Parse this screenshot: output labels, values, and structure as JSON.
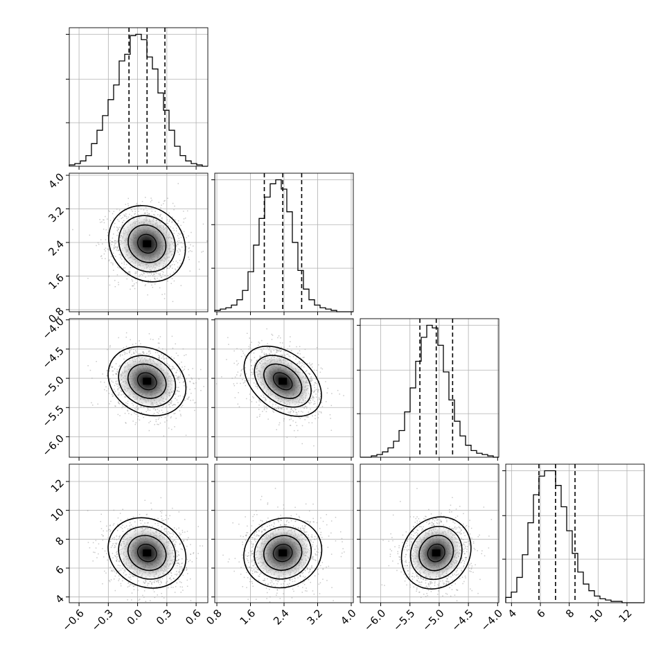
{
  "chart_data": {
    "type": "corner",
    "title": "",
    "parameters": [
      {
        "range": [
          -0.7,
          0.72
        ],
        "ticks": [
          -0.6,
          -0.3,
          0.0,
          0.3,
          0.6
        ],
        "tick_labels": [
          "−0.6",
          "−0.3",
          "0.0",
          "0.3",
          "0.6"
        ],
        "quantiles": [
          -0.088,
          0.097,
          0.28
        ],
        "mean": 0.097,
        "sd": 0.19
      },
      {
        "range": [
          0.75,
          4.05
        ],
        "ticks": [
          0.8,
          1.6,
          2.4,
          3.2,
          4.0
        ],
        "tick_labels": [
          "0.8",
          "1.6",
          "2.4",
          "3.2",
          "4.0"
        ],
        "quantiles": [
          1.93,
          2.37,
          2.82
        ],
        "mean": 2.37,
        "sd": 0.44
      },
      {
        "range": [
          -6.35,
          -3.98
        ],
        "ticks": [
          -6.0,
          -5.5,
          -5.0,
          -4.5,
          -4.0
        ],
        "tick_labels": [
          "−6.0",
          "−5.5",
          "−5.0",
          "−4.5",
          "−4.0"
        ],
        "quantiles": [
          -5.33,
          -5.05,
          -4.77
        ],
        "mean": -5.05,
        "sd": 0.29
      },
      {
        "range": [
          3.6,
          13.2
        ],
        "ticks": [
          4,
          6,
          8,
          10,
          12
        ],
        "tick_labels": [
          "4",
          "6",
          "8",
          "10",
          "12"
        ],
        "quantiles": [
          5.9,
          7.05,
          8.4
        ],
        "mean": 7.05,
        "sd": 1.2
      }
    ],
    "histograms": [
      {
        "bins": [
          -0.7,
          0.72
        ],
        "counts": [
          1,
          2,
          4,
          8,
          17,
          27,
          38,
          50,
          61,
          79,
          84,
          98,
          99,
          95,
          82,
          73,
          55,
          42,
          27,
          15,
          8,
          4,
          2,
          1,
          0
        ]
      },
      {
        "bins": [
          0.75,
          4.05
        ],
        "counts": [
          1,
          2,
          3,
          5,
          9,
          16,
          30,
          50,
          70,
          86,
          96,
          99,
          92,
          75,
          52,
          31,
          17,
          9,
          5,
          3,
          2,
          1,
          0,
          0,
          0
        ]
      },
      {
        "bins": [
          -6.35,
          -3.98
        ],
        "counts": [
          0,
          0,
          1,
          2,
          4,
          7,
          12,
          20,
          34,
          52,
          72,
          90,
          99,
          97,
          84,
          64,
          43,
          27,
          16,
          9,
          5,
          3,
          2,
          1,
          0
        ]
      },
      {
        "bins": [
          3.6,
          13.2
        ],
        "counts": [
          4,
          8,
          19,
          36,
          60,
          81,
          95,
          99,
          99,
          88,
          72,
          54,
          37,
          23,
          14,
          9,
          5,
          3,
          2,
          1,
          1,
          0,
          0,
          0,
          0
        ]
      }
    ],
    "correlations": [
      {
        "x": 0,
        "y": 1,
        "rho": -0.08
      },
      {
        "x": 0,
        "y": 2,
        "rho": -0.15
      },
      {
        "x": 1,
        "y": 2,
        "rho": -0.35
      },
      {
        "x": 0,
        "y": 3,
        "rho": -0.1
      },
      {
        "x": 1,
        "y": 3,
        "rho": 0.05
      },
      {
        "x": 2,
        "y": 3,
        "rho": 0.08
      }
    ],
    "contour_levels_sigma": [
      0.5,
      1.0,
      1.5,
      2.0
    ],
    "grid": true
  }
}
